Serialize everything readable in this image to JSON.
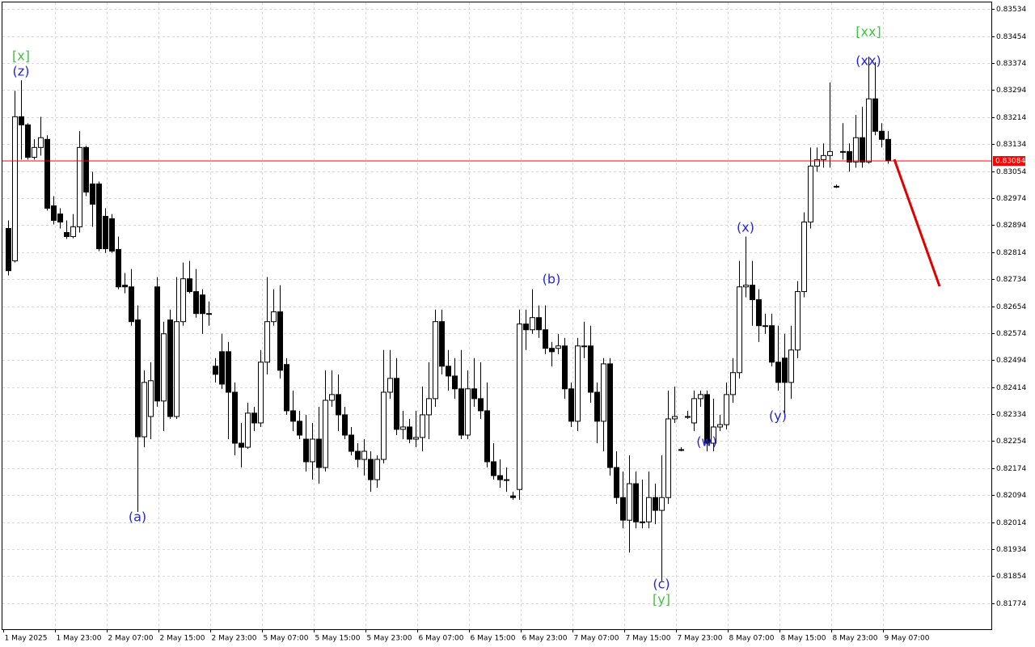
{
  "chart_data": {
    "type": "candlestick",
    "grid": true,
    "up_color": "#ffffff",
    "down_color": "#000000",
    "price_line_color": "#ff0000",
    "current_price": 0.83084,
    "current_price_label": "0.83084",
    "ylim": [
      0.81697,
      0.83556
    ],
    "yticks": [
      {
        "value": 0.83534,
        "label": "0.83534"
      },
      {
        "value": 0.83454,
        "label": "0.83454"
      },
      {
        "value": 0.83374,
        "label": "0.83374"
      },
      {
        "value": 0.83294,
        "label": "0.83294"
      },
      {
        "value": 0.83214,
        "label": "0.83214"
      },
      {
        "value": 0.83134,
        "label": "0.83134"
      },
      {
        "value": 0.83054,
        "label": "0.83054"
      },
      {
        "value": 0.82974,
        "label": "0.82974"
      },
      {
        "value": 0.82894,
        "label": "0.82894"
      },
      {
        "value": 0.82814,
        "label": "0.82814"
      },
      {
        "value": 0.82734,
        "label": "0.82734"
      },
      {
        "value": 0.82654,
        "label": "0.82654"
      },
      {
        "value": 0.82574,
        "label": "0.82574"
      },
      {
        "value": 0.82494,
        "label": "0.82494"
      },
      {
        "value": 0.82414,
        "label": "0.82414"
      },
      {
        "value": 0.82334,
        "label": "0.82334"
      },
      {
        "value": 0.82254,
        "label": "0.82254"
      },
      {
        "value": 0.82174,
        "label": "0.82174"
      },
      {
        "value": 0.82094,
        "label": "0.82094"
      },
      {
        "value": 0.82014,
        "label": "0.82014"
      },
      {
        "value": 0.81934,
        "label": "0.81934"
      },
      {
        "value": 0.81854,
        "label": "0.81854"
      },
      {
        "value": 0.81774,
        "label": "0.81774"
      }
    ],
    "xticks": [
      {
        "value": 0,
        "label": "1 May 2025"
      },
      {
        "value": 8,
        "label": "1 May 23:00"
      },
      {
        "value": 16,
        "label": "2 May 07:00"
      },
      {
        "value": 24,
        "label": "2 May 15:00"
      },
      {
        "value": 32,
        "label": "2 May 23:00"
      },
      {
        "value": 40,
        "label": "5 May 07:00"
      },
      {
        "value": 48,
        "label": "5 May 15:00"
      },
      {
        "value": 56,
        "label": "5 May 23:00"
      },
      {
        "value": 64,
        "label": "6 May 07:00"
      },
      {
        "value": 72,
        "label": "6 May 15:00"
      },
      {
        "value": 80,
        "label": "6 May 23:00"
      },
      {
        "value": 88,
        "label": "7 May 07:00"
      },
      {
        "value": 96,
        "label": "7 May 15:00"
      },
      {
        "value": 104,
        "label": "7 May 23:00"
      },
      {
        "value": 112,
        "label": "8 May 07:00"
      },
      {
        "value": 120,
        "label": "8 May 15:00"
      },
      {
        "value": 128,
        "label": "8 May 23:00"
      },
      {
        "value": 136,
        "label": "9 May 07:00"
      }
    ],
    "annotations": [
      {
        "text": "[x]",
        "color": "#3fc43f"
      },
      {
        "text": "(z)",
        "color": "#2424d8"
      },
      {
        "text": "(a)",
        "color": "#2424d8"
      },
      {
        "text": "(b)",
        "color": "#2424d8"
      },
      {
        "text": "(c)",
        "color": "#2424d8"
      },
      {
        "text": "[y]",
        "color": "#3fc43f"
      },
      {
        "text": "(w)",
        "color": "#2424d8"
      },
      {
        "text": "(x)",
        "color": "#2424d8"
      },
      {
        "text": "(y)",
        "color": "#2424d8"
      },
      {
        "text": "[xx]",
        "color": "#3fc43f"
      },
      {
        "text": "(xx)",
        "color": "#2424d8"
      }
    ],
    "open": [
      0.82884,
      0.82788,
      0.83215,
      0.83191,
      0.83095,
      0.83124,
      0.83148,
      0.82951,
      0.82927,
      0.82872,
      0.8286,
      0.82889,
      0.83124,
      0.83016,
      0.83016,
      0.8292,
      0.82913,
      0.82822,
      0.82716,
      0.82711,
      0.82613,
      0.82267,
      0.82327,
      0.82711,
      0.82373,
      0.82613,
      0.82327,
      0.82608,
      0.82735,
      0.82697,
      0.82687,
      0.82632,
      0.82476,
      0.82519,
      0.82519,
      0.82399,
      0.82248,
      0.82236,
      0.82337,
      0.82308,
      0.82488,
      0.82608,
      0.82637,
      0.82481,
      0.82344,
      0.82313,
      0.8226,
      0.82193,
      0.8226,
      0.82176,
      0.82375,
      0.82392,
      0.82332,
      0.82272,
      0.82224,
      0.822,
      0.822,
      0.8214,
      0.822,
      0.82399,
      0.8244,
      0.82289,
      0.82296,
      0.8226,
      0.82265,
      0.82332,
      0.8238,
      0.82608,
      0.82476,
      0.82447,
      0.82409,
      0.82272,
      0.82409,
      0.8238,
      0.82344,
      0.82193,
      0.82152,
      0.8214,
      0.82092,
      0.82111,
      0.82601,
      0.82584,
      0.8262,
      0.82584,
      0.82529,
      0.82529,
      0.82536,
      0.82409,
      0.82313,
      0.82536,
      0.82536,
      0.82399,
      0.82313,
      0.82483,
      0.82176,
      0.82087,
      0.8202,
      0.82128,
      0.82015,
      0.82015,
      0.82087,
      0.82049,
      0.82087,
      0.8232,
      0.82229,
      0.82327,
      0.82308,
      0.8238,
      0.82392,
      0.82248,
      0.82296,
      0.82303,
      0.82392,
      0.82457,
      0.82711,
      0.82716,
      0.82673,
      0.82596,
      0.82596,
      0.82488,
      0.825,
      0.82428,
      0.82524,
      0.82697,
      0.82903,
      0.83069,
      0.83088,
      0.831,
      0.83009,
      0.83112,
      0.83112,
      0.83081,
      0.83153,
      0.83081,
      0.83268,
      0.83172,
      0.83148
    ],
    "high": [
      0.82908,
      0.83292,
      0.83323,
      0.83196,
      0.83148,
      0.83215,
      0.8316,
      0.8298,
      0.82944,
      0.82908,
      0.82927,
      0.83172,
      0.83129,
      0.83052,
      0.83023,
      0.82944,
      0.82927,
      0.8286,
      0.82752,
      0.82764,
      0.82656,
      0.82464,
      0.82488,
      0.8274,
      0.82608,
      0.82644,
      0.8274,
      0.82783,
      0.82788,
      0.82764,
      0.82704,
      0.82668,
      0.825,
      0.82572,
      0.82548,
      0.82428,
      0.82308,
      0.82368,
      0.82356,
      0.82524,
      0.8274,
      0.82704,
      0.82716,
      0.825,
      0.82404,
      0.82344,
      0.82332,
      0.82308,
      0.82356,
      0.82464,
      0.82464,
      0.82452,
      0.82356,
      0.82296,
      0.82248,
      0.8226,
      0.82224,
      0.82212,
      0.82524,
      0.82524,
      0.825,
      0.82344,
      0.8232,
      0.82344,
      0.82416,
      0.82488,
      0.82644,
      0.82644,
      0.82524,
      0.825,
      0.82524,
      0.82464,
      0.825,
      0.82488,
      0.82428,
      0.82248,
      0.822,
      0.82176,
      0.82104,
      0.82644,
      0.82644,
      0.82704,
      0.82656,
      0.82656,
      0.82548,
      0.82572,
      0.8256,
      0.82428,
      0.8256,
      0.82608,
      0.82596,
      0.82428,
      0.825,
      0.825,
      0.82224,
      0.82164,
      0.82212,
      0.82164,
      0.8214,
      0.82164,
      0.82128,
      0.82212,
      0.82404,
      0.82416,
      0.82236,
      0.82344,
      0.82404,
      0.82404,
      0.82404,
      0.8238,
      0.82332,
      0.82428,
      0.825,
      0.82788,
      0.8286,
      0.82788,
      0.82704,
      0.82632,
      0.82632,
      0.82596,
      0.82572,
      0.82596,
      0.82728,
      0.82932,
      0.83124,
      0.83124,
      0.83136,
      0.83316,
      0.83014,
      0.83196,
      0.83136,
      0.8322,
      0.83244,
      0.83393,
      0.83376,
      0.83196,
      0.83172
    ],
    "low": [
      0.82745,
      0.82783,
      0.83088,
      0.83088,
      0.83088,
      0.831,
      0.82937,
      0.82896,
      0.82884,
      0.82853,
      0.82855,
      0.82872,
      0.8298,
      0.82889,
      0.82817,
      0.82812,
      0.82812,
      0.82704,
      0.82692,
      0.82596,
      0.82044,
      0.82236,
      0.8226,
      0.82356,
      0.82284,
      0.8232,
      0.8232,
      0.82596,
      0.82692,
      0.8262,
      0.82572,
      0.82596,
      0.82428,
      0.82409,
      0.8226,
      0.82212,
      0.82176,
      0.82231,
      0.82284,
      0.82296,
      0.82452,
      0.82596,
      0.8244,
      0.82332,
      0.82284,
      0.8226,
      0.82164,
      0.8214,
      0.82128,
      0.82164,
      0.82356,
      0.82284,
      0.8226,
      0.82212,
      0.82176,
      0.82152,
      0.82104,
      0.82116,
      0.82188,
      0.8238,
      0.82272,
      0.8226,
      0.82248,
      0.82236,
      0.82224,
      0.8226,
      0.82356,
      0.82452,
      0.82404,
      0.8238,
      0.8226,
      0.8226,
      0.82356,
      0.8232,
      0.82176,
      0.8214,
      0.82116,
      0.82104,
      0.8208,
      0.8208,
      0.82524,
      0.82572,
      0.8256,
      0.82512,
      0.82476,
      0.82512,
      0.8238,
      0.82296,
      0.82284,
      0.825,
      0.82368,
      0.82248,
      0.82224,
      0.82152,
      0.82068,
      0.81996,
      0.81924,
      0.81996,
      0.81996,
      0.81996,
      0.82008,
      0.8184,
      0.82068,
      0.82308,
      0.82224,
      0.8232,
      0.82284,
      0.82356,
      0.82224,
      0.82224,
      0.82284,
      0.82289,
      0.82368,
      0.8244,
      0.8268,
      0.82596,
      0.82548,
      0.82572,
      0.82476,
      0.82404,
      0.8232,
      0.8238,
      0.825,
      0.8268,
      0.82884,
      0.83052,
      0.83064,
      0.83064,
      0.83004,
      0.83088,
      0.83052,
      0.83064,
      0.83064,
      0.83076,
      0.8316,
      0.83124,
      0.83076
    ],
    "close": [
      0.82759,
      0.83215,
      0.83191,
      0.83095,
      0.83124,
      0.83153,
      0.82944,
      0.82908,
      0.82903,
      0.8286,
      0.82889,
      0.83124,
      0.82992,
      0.82956,
      0.82824,
      0.82824,
      0.82817,
      0.82711,
      0.82711,
      0.82608,
      0.82267,
      0.82428,
      0.82433,
      0.82373,
      0.82572,
      0.82327,
      0.82608,
      0.82735,
      0.82697,
      0.82632,
      0.82632,
      0.82632,
      0.82452,
      0.82423,
      0.82399,
      0.82248,
      0.82236,
      0.82337,
      0.82308,
      0.82488,
      0.82608,
      0.82637,
      0.82464,
      0.82344,
      0.82313,
      0.82272,
      0.82193,
      0.8226,
      0.82176,
      0.82375,
      0.82392,
      0.82332,
      0.82272,
      0.82224,
      0.822,
      0.82224,
      0.8214,
      0.822,
      0.82399,
      0.8244,
      0.82289,
      0.82296,
      0.8226,
      0.82265,
      0.82332,
      0.8238,
      0.82608,
      0.82476,
      0.82447,
      0.82409,
      0.82272,
      0.82409,
      0.8238,
      0.82344,
      0.82193,
      0.82152,
      0.8214,
      0.8214,
      0.82087,
      0.82601,
      0.82584,
      0.8262,
      0.82584,
      0.82529,
      0.82519,
      0.82536,
      0.82409,
      0.82313,
      0.82536,
      0.82536,
      0.82399,
      0.82313,
      0.82483,
      0.82176,
      0.82087,
      0.8202,
      0.82128,
      0.82015,
      0.82015,
      0.82087,
      0.82049,
      0.82087,
      0.8232,
      0.82327,
      0.82229,
      0.82327,
      0.8238,
      0.82392,
      0.82248,
      0.82296,
      0.82303,
      0.82392,
      0.82457,
      0.82711,
      0.82716,
      0.82673,
      0.82596,
      0.82596,
      0.82488,
      0.82428,
      0.82428,
      0.82524,
      0.82697,
      0.82903,
      0.83069,
      0.83088,
      0.831,
      0.83112,
      0.83009,
      0.83112,
      0.83081,
      0.83153,
      0.83081,
      0.83268,
      0.83172,
      0.83148,
      0.83084
    ]
  }
}
